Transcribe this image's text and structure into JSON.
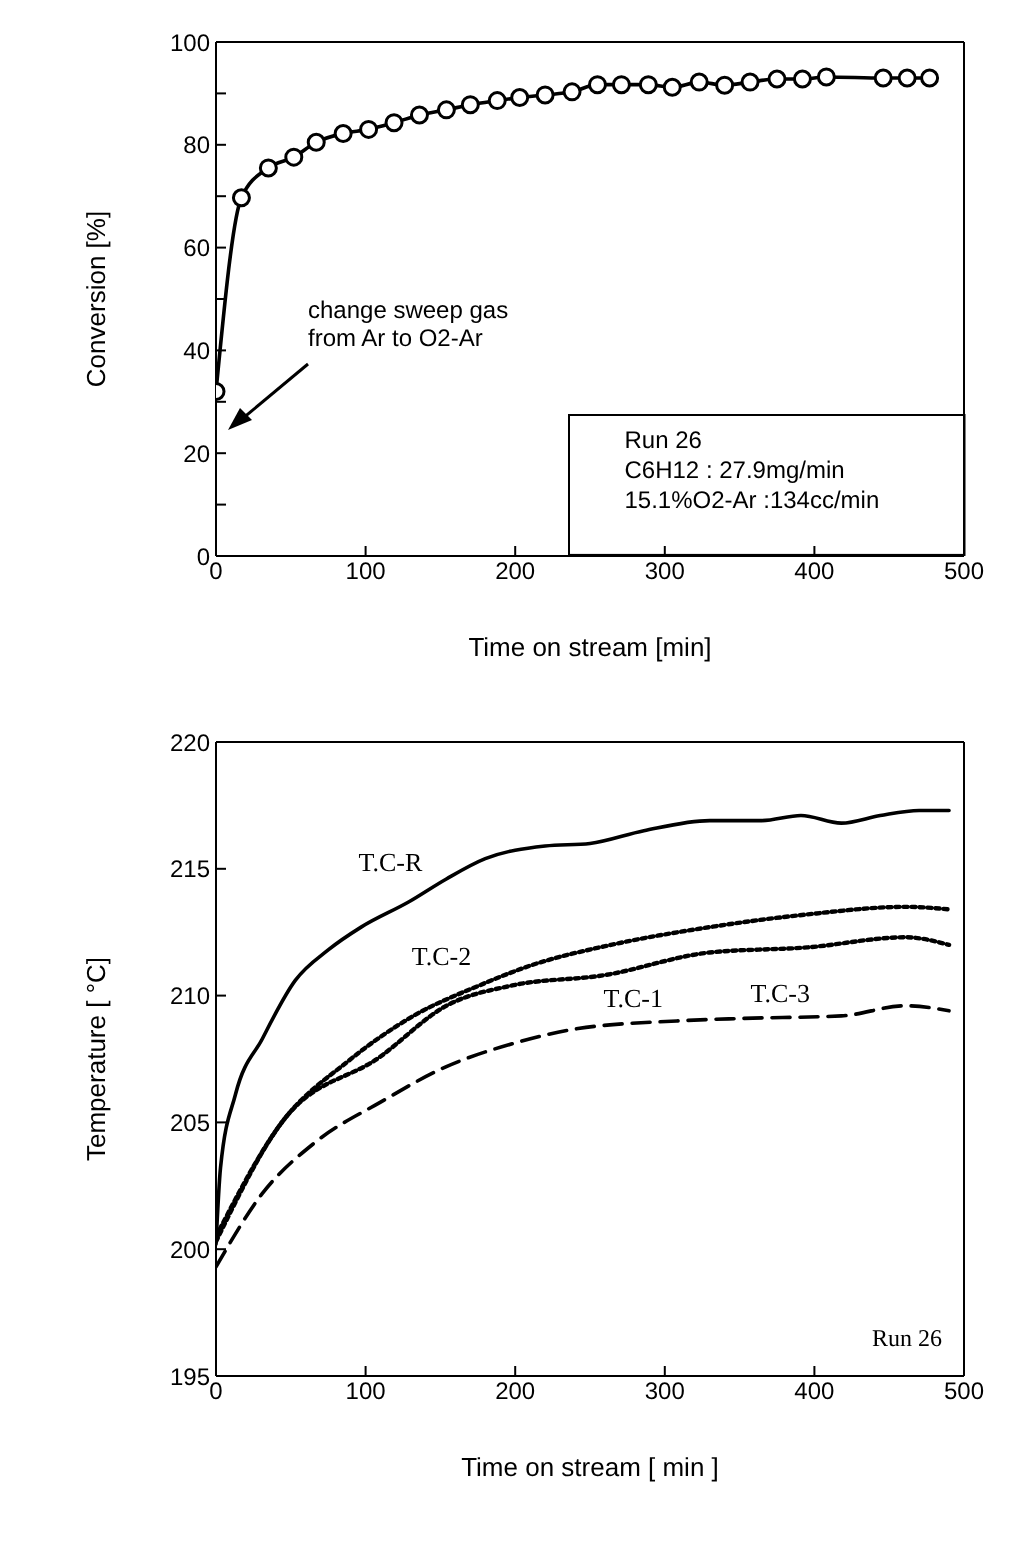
{
  "chart_data": [
    {
      "type": "line",
      "xlabel": "Time on stream   [min]",
      "ylabel": "Conversion [%]",
      "x": [
        0,
        17,
        35,
        52,
        67,
        85,
        102,
        119,
        136,
        154,
        170,
        188,
        203,
        220,
        238,
        255,
        271,
        289,
        305,
        323,
        340,
        357,
        375,
        392,
        408,
        446,
        462,
        477
      ],
      "series": [
        {
          "color": "#000000",
          "values": [
            32,
            69.7,
            75.5,
            77.6,
            80.5,
            82.2,
            83,
            84.3,
            85.8,
            86.8,
            87.8,
            88.6,
            89.2,
            89.7,
            90.3,
            91.7,
            91.7,
            91.7,
            91.2,
            92.2,
            91.6,
            92.2,
            92.8,
            92.8,
            93.2,
            93,
            93,
            93
          ]
        }
      ],
      "xlim": [
        0,
        500
      ],
      "xticks": [
        0,
        100,
        200,
        300,
        400,
        500
      ],
      "ylim": [
        0,
        100
      ],
      "yticks": [
        0,
        {
          "value": 10,
          "label": null
        },
        20,
        {
          "value": 30,
          "label": null
        },
        40,
        {
          "value": 50,
          "label": null
        },
        60,
        {
          "value": 70,
          "label": null
        },
        80,
        {
          "value": 90,
          "label": null
        },
        100
      ],
      "marker": "circle",
      "line_style": "solid",
      "grid": false,
      "legend": false,
      "annotations": [
        "change sweep gas\nfrom Ar to O2-Ar",
        "Run 26\nC6H12 : 27.9mg/min\n15.1%O2-Ar :134cc/min"
      ]
    },
    {
      "type": "line",
      "xlabel": "Time on stream  [ min ]",
      "ylabel": "Temperature  [ °C]",
      "series": [
        {
          "name": "T.C-R",
          "color": "#000000",
          "line_style": "solid",
          "x": [
            0,
            3,
            13,
            31,
            53,
            75,
            97,
            129,
            154,
            180,
            220,
            250,
            286,
            330,
            365,
            391,
            418,
            444,
            470,
            490
          ],
          "values": [
            200.2,
            203.2,
            206.1,
            208.3,
            210.6,
            211.8,
            212.7,
            213.7,
            214.6,
            215.4,
            215.9,
            216,
            216.5,
            216.9,
            216.9,
            217.1,
            216.8,
            217.1,
            217.3,
            217.3
          ]
        },
        {
          "name": "T.C-2",
          "color": "#000000",
          "line_style": "dotted",
          "x": [
            0,
            44,
            88,
            132,
            176,
            211,
            264,
            330,
            395,
            461,
            490
          ],
          "values": [
            200.5,
            205,
            207.4,
            209.2,
            210.4,
            211.2,
            212,
            212.7,
            213.2,
            213.5,
            213.4
          ]
        },
        {
          "name": "T.C-1",
          "color": "#000000",
          "line_style": "dotted",
          "x": [
            0,
            44,
            110,
            154,
            198,
            259,
            330,
            395,
            461,
            490
          ],
          "values": [
            200.3,
            205,
            207.6,
            209.6,
            210.4,
            210.8,
            211.7,
            211.9,
            212.3,
            212
          ]
        },
        {
          "name": "T.C-3",
          "color": "#000000",
          "line_style": "dashed",
          "x": [
            0,
            31,
            66,
            110,
            154,
            198,
            242,
            308,
            352,
            418,
            461,
            490
          ],
          "values": [
            199.3,
            202.2,
            204.2,
            205.8,
            207.2,
            208.1,
            208.7,
            209,
            209.1,
            209.2,
            209.6,
            209.4
          ]
        }
      ],
      "xlim": [
        0,
        500
      ],
      "xticks": [
        0,
        100,
        200,
        300,
        400,
        500
      ],
      "ylim": [
        195,
        220
      ],
      "yticks": [
        195,
        200,
        205,
        210,
        215,
        220
      ],
      "marker": "none",
      "grid": false,
      "legend": false,
      "annotations": [
        "Run 26"
      ]
    }
  ]
}
